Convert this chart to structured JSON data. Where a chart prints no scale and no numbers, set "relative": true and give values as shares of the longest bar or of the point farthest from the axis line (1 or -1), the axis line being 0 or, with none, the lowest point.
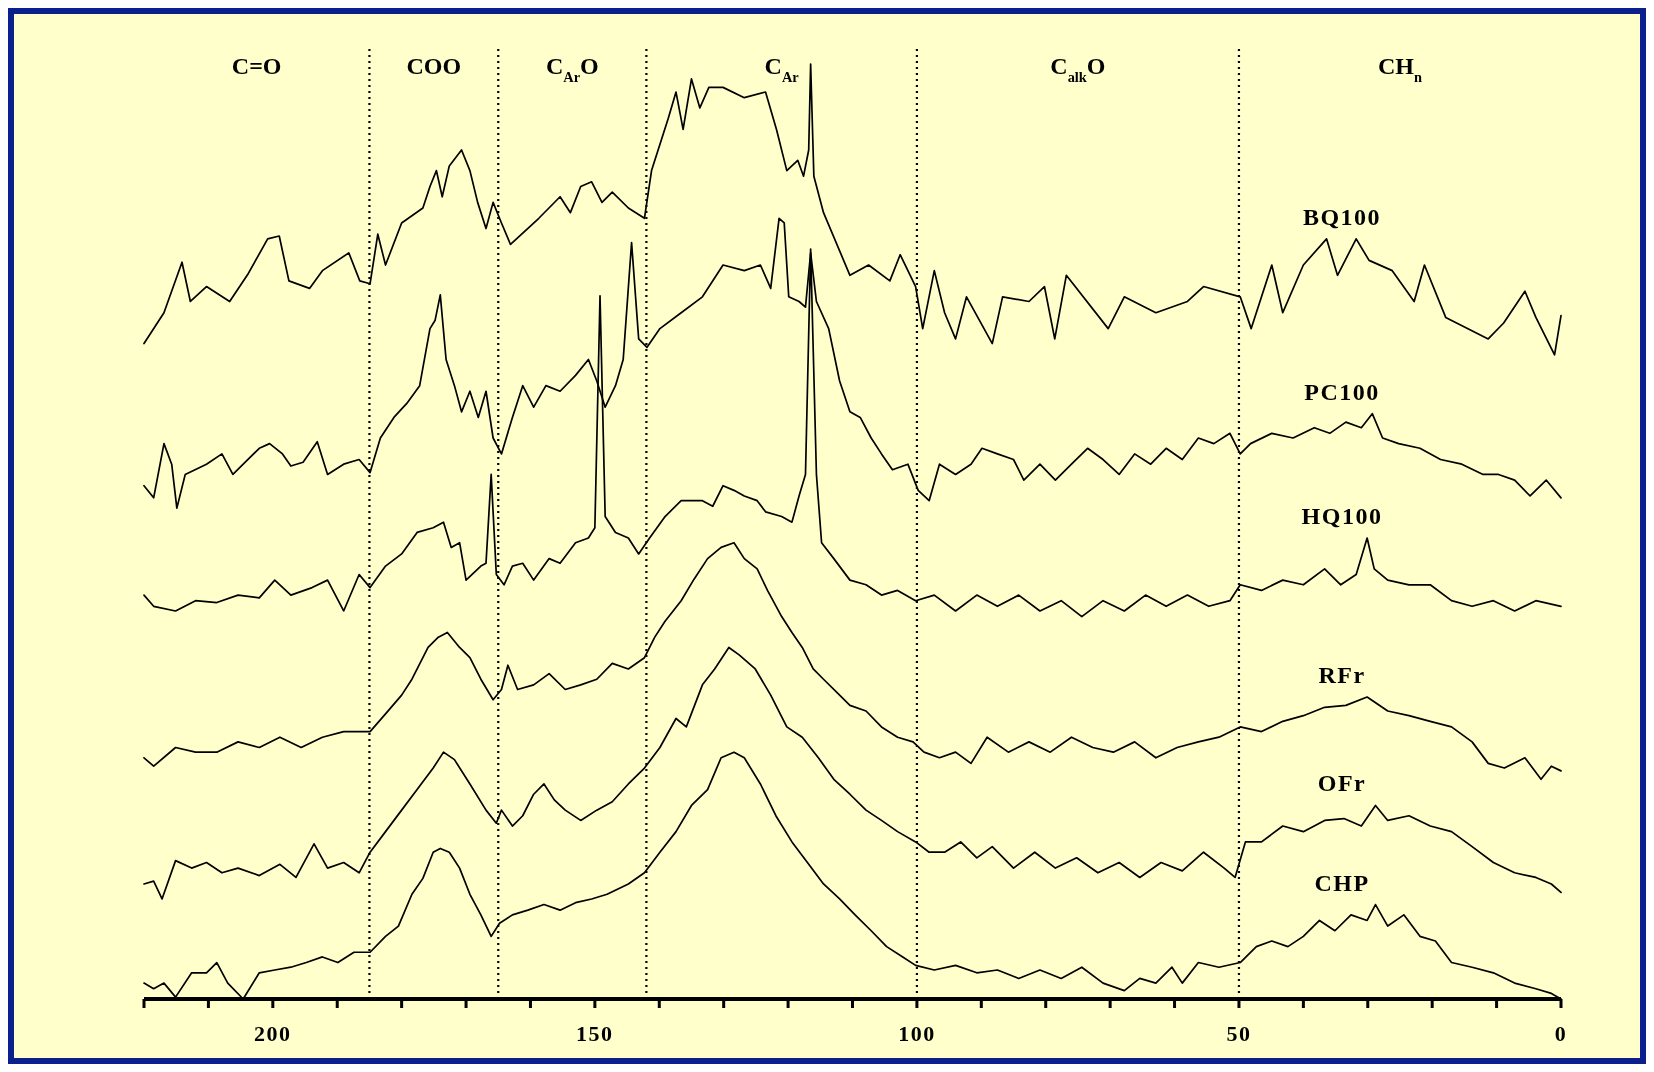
{
  "chart_data": {
    "type": "line",
    "relative": true,
    "grid": false,
    "xlim": [
      220,
      0
    ],
    "xticks": [
      {
        "value": 220,
        "label": null
      },
      {
        "value": 210,
        "label": null
      },
      200,
      {
        "value": 190,
        "label": null
      },
      {
        "value": 180,
        "label": null
      },
      {
        "value": 170,
        "label": null
      },
      {
        "value": 160,
        "label": null
      },
      150,
      {
        "value": 140,
        "label": null
      },
      {
        "value": 130,
        "label": null
      },
      {
        "value": 120,
        "label": null
      },
      {
        "value": 110,
        "label": null
      },
      100,
      {
        "value": 90,
        "label": null
      },
      {
        "value": 80,
        "label": null
      },
      {
        "value": 70,
        "label": null
      },
      {
        "value": 60,
        "label": null
      },
      50,
      {
        "value": 40,
        "label": null
      },
      {
        "value": 30,
        "label": null
      },
      {
        "value": 20,
        "label": null
      },
      {
        "value": 10,
        "label": null
      },
      0
    ],
    "ref_lines": [
      {
        "axis": "x",
        "value": 185,
        "line_style": "dotted"
      },
      {
        "axis": "x",
        "value": 165,
        "line_style": "dotted"
      },
      {
        "axis": "x",
        "value": 142,
        "line_style": "dotted"
      },
      {
        "axis": "x",
        "value": 100,
        "line_style": "dotted"
      },
      {
        "axis": "x",
        "value": 50,
        "line_style": "dotted"
      }
    ],
    "annotations": [
      "C=O",
      "COO",
      "C$_{Ar}$O",
      "C$_{Ar}$",
      "C$_{alk}$O",
      "CH$_{n}$"
    ],
    "series": [
      {
        "name": "BQ100",
        "color": "#000000",
        "x": [
          220,
          216.9,
          214.1,
          212.8,
          210.3,
          206.7,
          203.8,
          200.8,
          199,
          197.5,
          194.3,
          192.3,
          188.2,
          186.5,
          184.9,
          183.7,
          182.5,
          180,
          176.7,
          175.6,
          174.6,
          173.7,
          172.6,
          170.7,
          169.4,
          168.2,
          166.9,
          165.8,
          164.5,
          163.1,
          158.7,
          155.4,
          153.8,
          152.2,
          150.5,
          148.9,
          147.3,
          144.8,
          142.3,
          141.2,
          138.6,
          137.4,
          136.3,
          135,
          133.7,
          132.3,
          130.1,
          126.8,
          123.5,
          121.8,
          120.2,
          118.5,
          117.6,
          116.8,
          116.5,
          116,
          114.5,
          110.4,
          107.5,
          104.2,
          102.6,
          100.2,
          99.1,
          97.3,
          95.7,
          94,
          92.3,
          88.3,
          86.7,
          82.6,
          80.2,
          78.6,
          76.8,
          70.3,
          67.8,
          62.9,
          58,
          55.5,
          49.8,
          48.1,
          44.9,
          43.2,
          40,
          36.4,
          34.7,
          31.8,
          29.8,
          26.2,
          22.8,
          21.2,
          17.9,
          11.3,
          8.9,
          5.6,
          3.9,
          1,
          0
        ],
        "values": [
          0.701,
          0.734,
          0.788,
          0.746,
          0.762,
          0.746,
          0.776,
          0.813,
          0.816,
          0.768,
          0.76,
          0.779,
          0.798,
          0.768,
          0.765,
          0.818,
          0.785,
          0.83,
          0.846,
          0.869,
          0.886,
          0.858,
          0.891,
          0.908,
          0.886,
          0.852,
          0.824,
          0.852,
          0.83,
          0.807,
          0.835,
          0.858,
          0.841,
          0.869,
          0.874,
          0.852,
          0.863,
          0.846,
          0.835,
          0.886,
          0.942,
          0.97,
          0.93,
          0.984,
          0.953,
          0.975,
          0.975,
          0.964,
          0.97,
          0.93,
          0.886,
          0.897,
          0.88,
          0.908,
          1.0,
          0.88,
          0.841,
          0.774,
          0.785,
          0.768,
          0.796,
          0.762,
          0.717,
          0.779,
          0.734,
          0.706,
          0.751,
          0.701,
          0.751,
          0.746,
          0.762,
          0.706,
          0.774,
          0.717,
          0.751,
          0.734,
          0.746,
          0.762,
          0.751,
          0.717,
          0.785,
          0.734,
          0.785,
          0.813,
          0.774,
          0.813,
          0.79,
          0.779,
          0.746,
          0.785,
          0.729,
          0.706,
          0.723,
          0.757,
          0.729,
          0.689,
          0.731
        ]
      },
      {
        "name": "PC100",
        "color": "#000000",
        "x": [
          220,
          218.5,
          216.9,
          215.7,
          214.9,
          213.6,
          210.3,
          207.9,
          206.2,
          204.6,
          202.1,
          200.5,
          198.5,
          197.2,
          195.3,
          193.1,
          191.5,
          189,
          186.6,
          184.9,
          183.3,
          181.2,
          179.2,
          177.2,
          175.6,
          174.8,
          174,
          173.1,
          171.8,
          170.7,
          169.4,
          168.1,
          166.9,
          165.8,
          164.5,
          162.8,
          161.2,
          159.5,
          157.6,
          155.4,
          153,
          151,
          149.7,
          148.4,
          146.8,
          145.6,
          144.3,
          143.2,
          141.9,
          139.9,
          136.6,
          133.3,
          130.1,
          126.8,
          124.3,
          122.7,
          121.4,
          120.6,
          119.9,
          118.3,
          117.3,
          116.5,
          115.6,
          113.7,
          112,
          110.4,
          108.8,
          107.1,
          105.5,
          103.8,
          101.4,
          99.8,
          98.1,
          96.5,
          94,
          91.6,
          89.9,
          87.5,
          85,
          83.4,
          80.9,
          78.5,
          76,
          73.5,
          71.1,
          68.6,
          66.2,
          63.7,
          61.3,
          58.8,
          56.3,
          53.9,
          51.4,
          49.8,
          48.2,
          44.9,
          41.6,
          38.3,
          35.9,
          33.4,
          31,
          29.3,
          27.7,
          25.2,
          21.9,
          18.7,
          15.4,
          12.1,
          9.7,
          7.2,
          4.8,
          2.3,
          0
        ],
        "values": [
          0.549,
          0.536,
          0.594,
          0.572,
          0.525,
          0.561,
          0.572,
          0.583,
          0.561,
          0.572,
          0.589,
          0.594,
          0.583,
          0.57,
          0.574,
          0.596,
          0.561,
          0.572,
          0.577,
          0.563,
          0.6,
          0.622,
          0.637,
          0.656,
          0.717,
          0.726,
          0.753,
          0.684,
          0.656,
          0.628,
          0.65,
          0.622,
          0.65,
          0.6,
          0.583,
          0.622,
          0.656,
          0.633,
          0.656,
          0.65,
          0.667,
          0.684,
          0.661,
          0.633,
          0.656,
          0.684,
          0.809,
          0.706,
          0.697,
          0.717,
          0.734,
          0.751,
          0.785,
          0.779,
          0.785,
          0.76,
          0.835,
          0.83,
          0.751,
          0.746,
          0.74,
          0.798,
          0.746,
          0.717,
          0.661,
          0.628,
          0.622,
          0.6,
          0.583,
          0.566,
          0.572,
          0.544,
          0.533,
          0.572,
          0.561,
          0.572,
          0.589,
          0.583,
          0.577,
          0.555,
          0.572,
          0.555,
          0.572,
          0.589,
          0.577,
          0.561,
          0.583,
          0.572,
          0.589,
          0.577,
          0.6,
          0.594,
          0.605,
          0.583,
          0.594,
          0.605,
          0.6,
          0.611,
          0.605,
          0.617,
          0.611,
          0.626,
          0.6,
          0.594,
          0.589,
          0.577,
          0.572,
          0.561,
          0.561,
          0.555,
          0.538,
          0.555,
          0.536
        ]
      },
      {
        "name": "HQ100",
        "color": "#000000",
        "x": [
          220,
          218.5,
          215.1,
          212,
          208.7,
          205.4,
          202.1,
          199.7,
          197.2,
          193.9,
          191.5,
          189,
          186.6,
          184.9,
          182.5,
          180,
          177.6,
          175.1,
          173.5,
          172.3,
          171,
          170,
          167.7,
          166.9,
          166.1,
          165.3,
          164.1,
          162.8,
          161.2,
          159.5,
          157.1,
          155.4,
          153,
          151,
          150,
          149.2,
          148.4,
          146.8,
          144.8,
          143.2,
          141.5,
          139.1,
          136.6,
          133.3,
          131.7,
          130.1,
          128.4,
          126.8,
          124.8,
          123.5,
          121,
          119.4,
          118.3,
          117.3,
          116.5,
          115.6,
          114.8,
          112.9,
          110.4,
          107.9,
          105.5,
          103,
          100.2,
          97.3,
          94,
          90.7,
          87.5,
          84.2,
          80.9,
          77.6,
          74.4,
          71.1,
          67.8,
          64.5,
          61.3,
          58,
          54.7,
          51.4,
          49.8,
          46.5,
          43.2,
          40,
          36.7,
          34.2,
          31.8,
          30.1,
          29,
          26.9,
          23.6,
          20.3,
          17,
          13.8,
          10.5,
          7.2,
          3.9,
          0
        ],
        "values": [
          0.432,
          0.42,
          0.415,
          0.426,
          0.424,
          0.432,
          0.429,
          0.448,
          0.432,
          0.44,
          0.448,
          0.415,
          0.454,
          0.44,
          0.463,
          0.476,
          0.499,
          0.504,
          0.51,
          0.483,
          0.488,
          0.448,
          0.463,
          0.466,
          0.561,
          0.454,
          0.443,
          0.463,
          0.466,
          0.448,
          0.471,
          0.466,
          0.488,
          0.493,
          0.504,
          0.752,
          0.516,
          0.499,
          0.493,
          0.476,
          0.493,
          0.516,
          0.533,
          0.533,
          0.527,
          0.549,
          0.544,
          0.538,
          0.533,
          0.521,
          0.516,
          0.51,
          0.538,
          0.561,
          0.802,
          0.561,
          0.488,
          0.471,
          0.448,
          0.443,
          0.432,
          0.437,
          0.426,
          0.432,
          0.415,
          0.432,
          0.42,
          0.432,
          0.415,
          0.426,
          0.409,
          0.426,
          0.415,
          0.432,
          0.42,
          0.432,
          0.42,
          0.426,
          0.443,
          0.437,
          0.448,
          0.443,
          0.46,
          0.443,
          0.454,
          0.493,
          0.46,
          0.448,
          0.443,
          0.443,
          0.426,
          0.42,
          0.426,
          0.415,
          0.426,
          0.42
        ]
      },
      {
        "name": "RFr",
        "color": "#000000",
        "x": [
          220,
          218.5,
          215.1,
          212,
          208.7,
          205.4,
          202.1,
          198.9,
          195.6,
          192.3,
          189,
          184.9,
          182.5,
          180,
          178.4,
          175.9,
          174.3,
          172.9,
          171,
          169.4,
          167.7,
          165.8,
          164.5,
          163.5,
          162,
          159.5,
          157.1,
          154.6,
          152.2,
          149.7,
          147.3,
          144.8,
          142.3,
          140.7,
          139.1,
          136.6,
          134.6,
          132.5,
          130.4,
          128.4,
          126.8,
          124.8,
          123.2,
          121,
          119.4,
          117.8,
          116.1,
          114.5,
          112,
          110.4,
          107.9,
          105.5,
          103,
          100.6,
          98.9,
          96.5,
          94,
          91.6,
          89.1,
          85.8,
          82.6,
          79.3,
          76,
          72.7,
          69.5,
          66.2,
          62.9,
          59.6,
          56.3,
          53.1,
          49.8,
          46.5,
          43.2,
          40,
          36.7,
          33.4,
          30.1,
          26.9,
          23.6,
          20.3,
          17,
          13.8,
          11.3,
          8.8,
          5.6,
          3.1,
          1.5,
          0
        ],
        "values": [
          0.258,
          0.249,
          0.269,
          0.264,
          0.264,
          0.275,
          0.269,
          0.28,
          0.269,
          0.28,
          0.286,
          0.286,
          0.305,
          0.325,
          0.342,
          0.376,
          0.387,
          0.392,
          0.376,
          0.365,
          0.342,
          0.32,
          0.331,
          0.357,
          0.331,
          0.336,
          0.348,
          0.331,
          0.336,
          0.342,
          0.359,
          0.353,
          0.365,
          0.387,
          0.404,
          0.426,
          0.449,
          0.471,
          0.483,
          0.488,
          0.471,
          0.46,
          0.437,
          0.409,
          0.392,
          0.376,
          0.353,
          0.342,
          0.325,
          0.314,
          0.308,
          0.291,
          0.28,
          0.275,
          0.264,
          0.258,
          0.264,
          0.252,
          0.28,
          0.264,
          0.275,
          0.264,
          0.28,
          0.269,
          0.264,
          0.275,
          0.258,
          0.269,
          0.275,
          0.28,
          0.291,
          0.286,
          0.297,
          0.303,
          0.312,
          0.314,
          0.323,
          0.308,
          0.303,
          0.297,
          0.291,
          0.275,
          0.252,
          0.247,
          0.258,
          0.235,
          0.249,
          0.244
        ]
      },
      {
        "name": "OFr",
        "color": "#000000",
        "x": [
          220,
          218.5,
          217.2,
          215.1,
          212.6,
          210.3,
          207.9,
          205.4,
          202.1,
          198.9,
          196.4,
          193.6,
          191.5,
          189,
          186.6,
          184.9,
          182.5,
          180,
          177.6,
          175.1,
          173.5,
          171.8,
          169.4,
          166.9,
          165.3,
          164.5,
          162.8,
          161.2,
          159.5,
          157.9,
          156.3,
          154.6,
          152.2,
          149.7,
          147.3,
          144.8,
          142.3,
          139.9,
          137.4,
          135.8,
          133.3,
          131.4,
          129.2,
          127.6,
          125.1,
          122.7,
          120.2,
          117.8,
          115.3,
          112.9,
          110.4,
          107.9,
          105.5,
          103,
          100.2,
          98.1,
          95.7,
          93.2,
          90.7,
          88.3,
          85,
          81.7,
          78.5,
          75.2,
          71.9,
          68.6,
          65.4,
          62.1,
          58.8,
          55.5,
          52.3,
          50.6,
          49,
          46.5,
          43.2,
          40,
          36.7,
          33.7,
          31,
          28.8,
          26.9,
          23.6,
          20.3,
          17,
          13.8,
          10.5,
          7.2,
          3.9,
          1.5,
          0
        ],
        "values": [
          0.123,
          0.126,
          0.107,
          0.148,
          0.14,
          0.146,
          0.135,
          0.14,
          0.132,
          0.144,
          0.13,
          0.166,
          0.14,
          0.146,
          0.135,
          0.157,
          0.179,
          0.202,
          0.224,
          0.247,
          0.264,
          0.256,
          0.23,
          0.202,
          0.188,
          0.202,
          0.185,
          0.196,
          0.219,
          0.23,
          0.213,
          0.202,
          0.191,
          0.202,
          0.211,
          0.23,
          0.247,
          0.269,
          0.3,
          0.291,
          0.336,
          0.353,
          0.376,
          0.368,
          0.353,
          0.325,
          0.291,
          0.28,
          0.258,
          0.235,
          0.219,
          0.202,
          0.191,
          0.179,
          0.168,
          0.157,
          0.157,
          0.168,
          0.151,
          0.163,
          0.14,
          0.157,
          0.14,
          0.151,
          0.135,
          0.146,
          0.13,
          0.146,
          0.137,
          0.157,
          0.14,
          0.13,
          0.168,
          0.168,
          0.185,
          0.179,
          0.191,
          0.193,
          0.185,
          0.207,
          0.191,
          0.196,
          0.185,
          0.179,
          0.163,
          0.146,
          0.135,
          0.13,
          0.123,
          0.114
        ]
      },
      {
        "name": "CHP",
        "color": "#000000",
        "x": [
          220,
          218.5,
          216.9,
          215.1,
          212.6,
          210.3,
          208.7,
          207,
          204.6,
          202.1,
          199.7,
          197.2,
          194.8,
          192.3,
          189.9,
          187.4,
          184.9,
          182.5,
          180.5,
          178.4,
          176.7,
          175.1,
          174,
          172.6,
          171,
          169.4,
          167.7,
          166.1,
          164.8,
          162.8,
          160.4,
          157.9,
          155.4,
          153,
          150.5,
          148.1,
          144.8,
          142.3,
          139.9,
          137.4,
          135,
          132.5,
          130.4,
          128.4,
          126.8,
          124.3,
          121.9,
          119.4,
          117,
          114.5,
          112,
          109.6,
          107.1,
          104.7,
          102.2,
          100.2,
          97.3,
          94,
          90.7,
          87.5,
          84.2,
          80.9,
          77.6,
          74.4,
          71.1,
          67.8,
          65.4,
          62.9,
          60.4,
          58.8,
          56.3,
          53.1,
          49.8,
          47.3,
          44.9,
          42.4,
          40,
          37.5,
          35.1,
          32.6,
          30.1,
          28.8,
          26.9,
          24.4,
          21.9,
          19.5,
          17,
          13.8,
          10.5,
          7.2,
          3.9,
          1.5,
          0
        ],
        "values": [
          0.017,
          0.011,
          0.017,
          0.002,
          0.028,
          0.028,
          0.039,
          0.017,
          0,
          0.028,
          0.031,
          0.034,
          0.039,
          0.045,
          0.039,
          0.05,
          0.05,
          0.067,
          0.078,
          0.112,
          0.129,
          0.157,
          0.161,
          0.157,
          0.14,
          0.112,
          0.09,
          0.067,
          0.081,
          0.09,
          0.095,
          0.101,
          0.095,
          0.103,
          0.107,
          0.112,
          0.123,
          0.135,
          0.157,
          0.179,
          0.207,
          0.224,
          0.258,
          0.264,
          0.258,
          0.23,
          0.196,
          0.168,
          0.146,
          0.123,
          0.107,
          0.09,
          0.073,
          0.056,
          0.045,
          0.036,
          0.031,
          0.036,
          0.028,
          0.031,
          0.022,
          0.031,
          0.022,
          0.034,
          0.017,
          0.009,
          0.022,
          0.017,
          0.034,
          0.017,
          0.039,
          0.034,
          0.039,
          0.056,
          0.062,
          0.056,
          0.067,
          0.084,
          0.073,
          0.09,
          0.084,
          0.101,
          0.078,
          0.09,
          0.067,
          0.062,
          0.039,
          0.034,
          0.028,
          0.017,
          0.011,
          0.006,
          0
        ]
      }
    ]
  }
}
